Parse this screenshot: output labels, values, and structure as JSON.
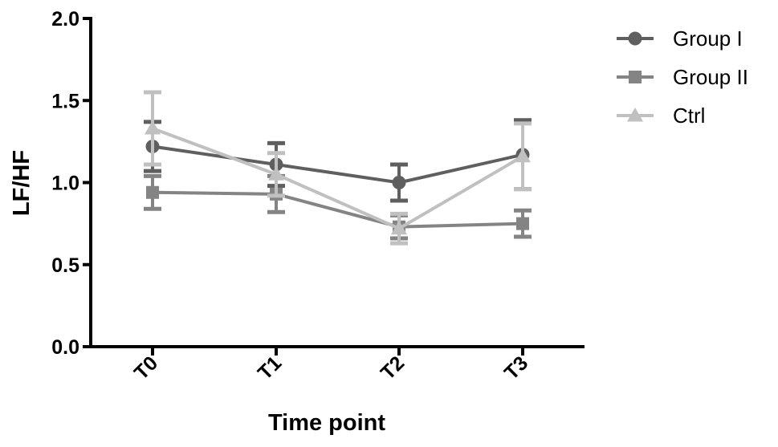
{
  "chart_data": {
    "type": "line",
    "xlabel": "Time point",
    "ylabel": "LF/HF",
    "categories": [
      "T0",
      "T1",
      "T2",
      "T3"
    ],
    "ylim": [
      0,
      2.0
    ],
    "yticks": [
      "0.0",
      "0.5",
      "1.0",
      "1.5",
      "2.0"
    ],
    "ytick_values": [
      0,
      0.5,
      1.0,
      1.5,
      2.0
    ],
    "grid": false,
    "legend_position": "top-right",
    "series": [
      {
        "name": "Group I",
        "marker": "circle",
        "color": "#5f5f5f",
        "values": [
          1.22,
          1.11,
          1.0,
          1.17
        ],
        "errors": [
          0.15,
          0.13,
          0.11,
          0.21
        ]
      },
      {
        "name": "Group II",
        "marker": "square",
        "color": "#848484",
        "values": [
          0.94,
          0.93,
          0.73,
          0.75
        ],
        "errors": [
          0.1,
          0.11,
          0.07,
          0.08
        ]
      },
      {
        "name": "Ctrl",
        "marker": "triangle",
        "color": "#c0c0c0",
        "values": [
          1.33,
          1.05,
          0.72,
          1.16
        ],
        "errors": [
          0.22,
          0.13,
          0.09,
          0.2
        ]
      }
    ]
  }
}
